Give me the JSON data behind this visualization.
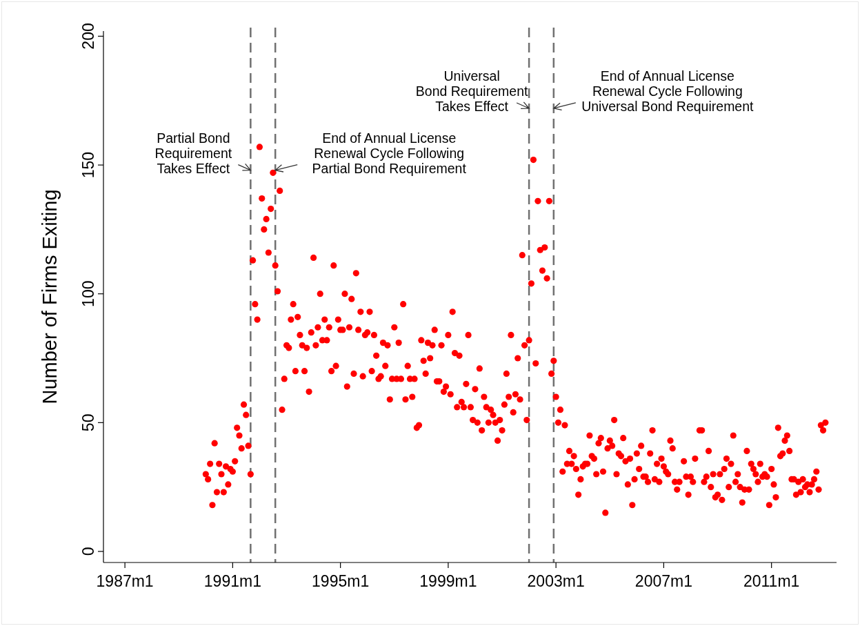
{
  "chart_data": {
    "type": "scatter",
    "ylabel": "Number of Firms Exiting",
    "color": "#ff0000",
    "marker": "circle",
    "xlim": [
      "1986-03-16",
      "2013-06"
    ],
    "ylim": [
      -4.3,
      202
    ],
    "xticks": [
      {
        "value": "1987-01",
        "label": "1987m1"
      },
      {
        "value": "1991-01",
        "label": "1991m1"
      },
      {
        "value": "1995-01",
        "label": "1995m1"
      },
      {
        "value": "1999-01",
        "label": "1999m1"
      },
      {
        "value": "2003-01",
        "label": "2003m1"
      },
      {
        "value": "2007-01",
        "label": "2007m1"
      },
      {
        "value": "2011-01",
        "label": "2011m1"
      }
    ],
    "yticks": [
      0,
      50,
      100,
      150,
      200
    ],
    "x": [
      "1990-01",
      "1990-02",
      "1990-03",
      "1990-04",
      "1990-05",
      "1990-06",
      "1990-07",
      "1990-08",
      "1990-09",
      "1990-10",
      "1990-11",
      "1990-12",
      "1991-01",
      "1991-02",
      "1991-03",
      "1991-04",
      "1991-05",
      "1991-06",
      "1991-07",
      "1991-08",
      "1991-09",
      "1991-10",
      "1991-11",
      "1991-12",
      "1992-01",
      "1992-02",
      "1992-03",
      "1992-04",
      "1992-05",
      "1992-06",
      "1992-07",
      "1992-08",
      "1992-09",
      "1992-10",
      "1992-11",
      "1992-12",
      "1993-01",
      "1993-02",
      "1993-03",
      "1993-04",
      "1993-05",
      "1993-06",
      "1993-07",
      "1993-08",
      "1993-09",
      "1993-10",
      "1993-11",
      "1993-12",
      "1994-01",
      "1994-02",
      "1994-03",
      "1994-04",
      "1994-05",
      "1994-06",
      "1994-07",
      "1994-08",
      "1994-09",
      "1994-10",
      "1994-11",
      "1994-12",
      "1995-01",
      "1995-02",
      "1995-03",
      "1995-04",
      "1995-05",
      "1995-06",
      "1995-07",
      "1995-08",
      "1995-09",
      "1995-10",
      "1995-11",
      "1995-12",
      "1996-01",
      "1996-02",
      "1996-03",
      "1996-04",
      "1996-05",
      "1996-06",
      "1996-07",
      "1996-08",
      "1996-09",
      "1996-10",
      "1996-11",
      "1996-12",
      "1997-01",
      "1997-02",
      "1997-03",
      "1997-04",
      "1997-05",
      "1997-06",
      "1997-07",
      "1997-08",
      "1997-09",
      "1997-10",
      "1997-11",
      "1997-12",
      "1998-01",
      "1998-02",
      "1998-03",
      "1998-04",
      "1998-05",
      "1998-06",
      "1998-07",
      "1998-08",
      "1998-09",
      "1998-10",
      "1998-11",
      "1998-12",
      "1999-01",
      "1999-02",
      "1999-03",
      "1999-04",
      "1999-05",
      "1999-06",
      "1999-07",
      "1999-08",
      "1999-09",
      "1999-10",
      "1999-11",
      "1999-12",
      "2000-01",
      "2000-02",
      "2000-03",
      "2000-04",
      "2000-05",
      "2000-06",
      "2000-07",
      "2000-08",
      "2000-09",
      "2000-10",
      "2000-11",
      "2000-12",
      "2001-01",
      "2001-02",
      "2001-03",
      "2001-04",
      "2001-05",
      "2001-06",
      "2001-07",
      "2001-08",
      "2001-09",
      "2001-10",
      "2001-11",
      "2001-12",
      "2002-01",
      "2002-02",
      "2002-03",
      "2002-04",
      "2002-05",
      "2002-06",
      "2002-07",
      "2002-08",
      "2002-09",
      "2002-10",
      "2002-11",
      "2002-12",
      "2003-01",
      "2003-02",
      "2003-03",
      "2003-04",
      "2003-05",
      "2003-06",
      "2003-07",
      "2003-08",
      "2003-09",
      "2003-10",
      "2003-11",
      "2003-12",
      "2004-01",
      "2004-02",
      "2004-03",
      "2004-04",
      "2004-05",
      "2004-06",
      "2004-07",
      "2004-08",
      "2004-09",
      "2004-10",
      "2004-11",
      "2004-12",
      "2005-01",
      "2005-02",
      "2005-03",
      "2005-04",
      "2005-05",
      "2005-06",
      "2005-07",
      "2005-08",
      "2005-09",
      "2005-10",
      "2005-11",
      "2005-12",
      "2006-01",
      "2006-02",
      "2006-03",
      "2006-04",
      "2006-05",
      "2006-06",
      "2006-07",
      "2006-08",
      "2006-09",
      "2006-10",
      "2006-11",
      "2006-12",
      "2007-01",
      "2007-02",
      "2007-03",
      "2007-04",
      "2007-05",
      "2007-06",
      "2007-07",
      "2007-08",
      "2007-10",
      "2007-11",
      "2007-12",
      "2008-01",
      "2008-02",
      "2008-03",
      "2008-05",
      "2008-06",
      "2008-07",
      "2008-08",
      "2008-09",
      "2008-10",
      "2008-11",
      "2008-12",
      "2009-01",
      "2009-02",
      "2009-03",
      "2009-04",
      "2009-05",
      "2009-06",
      "2009-07",
      "2009-08",
      "2009-09",
      "2009-10",
      "2009-11",
      "2009-12",
      "2010-01",
      "2010-02",
      "2010-03",
      "2010-04",
      "2010-05",
      "2010-06",
      "2010-07",
      "2010-08",
      "2010-09",
      "2010-10",
      "2010-11",
      "2010-12",
      "2011-01",
      "2011-02",
      "2011-03",
      "2011-04",
      "2011-05",
      "2011-06",
      "2011-07",
      "2011-08",
      "2011-09",
      "2011-10",
      "2011-11",
      "2011-12",
      "2012-01",
      "2012-02",
      "2012-03",
      "2012-04",
      "2012-05",
      "2012-06",
      "2012-07",
      "2012-08",
      "2012-09",
      "2012-10",
      "2012-11",
      "2012-12",
      "2013-01"
    ],
    "values": [
      30,
      28,
      34,
      18,
      42,
      23,
      34,
      30,
      23,
      33,
      26,
      32,
      31,
      35,
      48,
      45,
      40,
      57,
      53,
      41,
      30,
      113,
      96,
      90,
      157,
      137,
      125,
      129,
      116,
      133,
      147,
      111,
      101,
      140,
      55,
      67,
      80,
      79,
      90,
      96,
      70,
      91,
      84,
      80,
      70,
      79,
      62,
      85,
      114,
      80,
      87,
      100,
      82,
      90,
      82,
      87,
      70,
      111,
      72,
      90,
      86,
      86,
      100,
      64,
      87,
      98,
      69,
      108,
      86,
      93,
      68,
      84,
      85,
      93,
      70,
      84,
      76,
      67,
      68,
      81,
      72,
      80,
      59,
      67,
      87,
      67,
      81,
      67,
      96,
      59,
      72,
      67,
      60,
      67,
      48,
      49,
      82,
      74,
      69,
      81,
      75,
      80,
      86,
      66,
      66,
      80,
      62,
      64,
      84,
      61,
      93,
      77,
      56,
      76,
      58,
      56,
      65,
      84,
      56,
      51,
      63,
      50,
      71,
      47,
      60,
      56,
      50,
      55,
      53,
      50,
      43,
      51,
      47,
      57,
      69,
      60,
      84,
      54,
      61,
      75,
      59,
      115,
      80,
      51,
      82,
      104,
      152,
      73,
      136,
      117,
      109,
      118,
      106,
      136,
      69,
      74,
      60,
      50,
      55,
      31,
      49,
      34,
      39,
      34,
      37,
      32,
      22,
      28,
      33,
      34,
      34,
      45,
      37,
      36,
      30,
      42,
      44,
      31,
      15,
      40,
      43,
      41,
      51,
      30,
      38,
      37,
      44,
      35,
      26,
      36,
      18,
      28,
      38,
      32,
      41,
      29,
      29,
      27,
      38,
      47,
      28,
      34,
      27,
      36,
      33,
      31,
      30,
      43,
      40,
      27,
      24,
      27,
      35,
      29,
      22,
      29,
      27,
      36,
      47,
      47,
      27,
      29,
      39,
      25,
      30,
      21,
      22,
      30,
      20,
      32,
      36,
      25,
      34,
      45,
      27,
      30,
      25,
      19,
      24,
      39,
      24,
      34,
      32,
      30,
      27,
      34,
      29,
      30,
      29,
      18,
      32,
      26,
      21,
      48,
      37,
      38,
      43,
      45,
      39,
      28,
      28,
      22,
      27,
      23,
      28,
      25,
      26,
      23,
      26,
      28,
      31,
      24,
      49,
      47,
      50
    ],
    "ref_lines": [
      {
        "axis": "x",
        "value": "1991-09",
        "color": "#707070",
        "line_style": "dashed"
      },
      {
        "axis": "x",
        "value": "1992-08",
        "color": "#707070",
        "line_style": "dashed"
      },
      {
        "axis": "x",
        "value": "2002-01",
        "color": "#707070",
        "line_style": "dashed"
      },
      {
        "axis": "x",
        "value": "2002-12",
        "color": "#707070",
        "line_style": "dashed"
      }
    ],
    "annotations": [
      {
        "text": "Partial Bond\nRequirement\nTakes Effect",
        "x": "1991-09",
        "y": 148
      },
      {
        "text": "End of Annual License\nRenewal Cycle Following\nPartial Bond Requirement",
        "x": "1992-08",
        "y": 148
      },
      {
        "text": "Universal\nBond Requirement\nTakes Effect",
        "x": "2002-01",
        "y": 172
      },
      {
        "text": "End of Annual License\nRenewal Cycle Following\nUniversal Bond Requirement",
        "x": "2002-12",
        "y": 172
      }
    ]
  }
}
